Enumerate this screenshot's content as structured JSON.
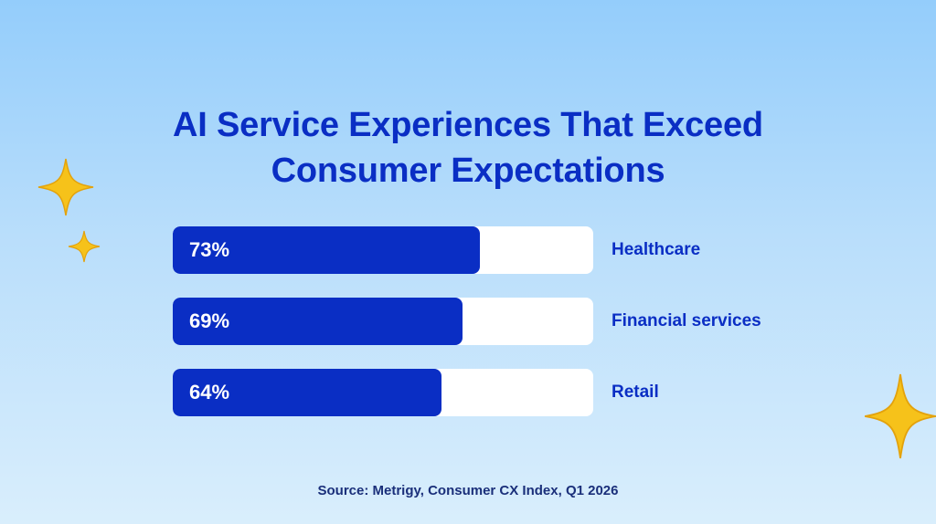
{
  "colors": {
    "accent": "#0a2ec4",
    "title": "#0a2ec4",
    "text_dark": "#1a2f7a",
    "track": "#ffffff",
    "sparkle": "#f6c21a"
  },
  "chart_data": {
    "type": "bar",
    "orientation": "horizontal",
    "title_lines": [
      "AI Service Experiences That Exceed",
      "Consumer Expectations"
    ],
    "categories": [
      "Healthcare",
      "Financial services",
      "Retail"
    ],
    "values": [
      73,
      69,
      64
    ],
    "value_labels": [
      "73%",
      "69%",
      "64%"
    ],
    "xlim": [
      0,
      100
    ],
    "grid": false,
    "legend": "none"
  },
  "footer": {
    "source": "Source: Metrigy, Consumer CX Index, Q1 2026"
  },
  "decorations": {
    "icons": [
      "sparkle-icon",
      "sparkle-icon",
      "sparkle-icon"
    ]
  }
}
